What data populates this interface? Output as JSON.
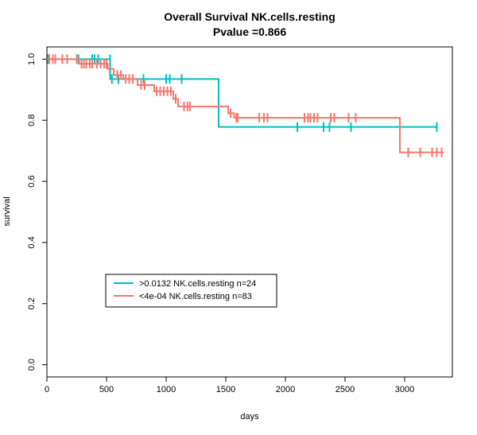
{
  "chart_data": {
    "type": "line",
    "subtype": "kaplan-meier step",
    "title": "Overall Survival NK.cells.resting",
    "subtitle": "Pvalue =0.866",
    "xlabel": "days",
    "ylabel": "survival",
    "xlim": [
      0,
      3400
    ],
    "ylim": [
      0,
      1
    ],
    "x_ticks": [
      0,
      500,
      1000,
      1500,
      2000,
      2500,
      3000
    ],
    "y_ticks": [
      0.0,
      0.2,
      0.4,
      0.6,
      0.8,
      1.0
    ],
    "x_tick_labels": [
      "0",
      "500",
      "1000",
      "1500",
      "2000",
      "2500",
      "3000"
    ],
    "y_tick_labels": [
      "0.0",
      "0.2",
      "0.4",
      "0.6",
      "0.8",
      "1.0"
    ],
    "grid": false,
    "legend_position": "bottom-left",
    "series": [
      {
        "name": ">0.0132 NK.cells.resting n=24",
        "color": "#00BFC4",
        "steps": [
          [
            0,
            1.0
          ],
          [
            530,
            0.935
          ],
          [
            1440,
            0.778
          ],
          [
            3270,
            0.778
          ]
        ],
        "censored": [
          [
            10,
            1.0
          ],
          [
            20,
            1.0
          ],
          [
            265,
            1.0
          ],
          [
            380,
            1.0
          ],
          [
            400,
            1.0
          ],
          [
            430,
            1.0
          ],
          [
            530,
            1.0
          ],
          [
            545,
            0.935
          ],
          [
            600,
            0.935
          ],
          [
            810,
            0.935
          ],
          [
            1000,
            0.935
          ],
          [
            1030,
            0.935
          ],
          [
            1130,
            0.935
          ],
          [
            2100,
            0.778
          ],
          [
            2320,
            0.778
          ],
          [
            2370,
            0.778
          ],
          [
            2550,
            0.778
          ],
          [
            3270,
            0.778
          ]
        ]
      },
      {
        "name": "<4e-04 NK.cells.resting n=83",
        "color": "#F8766D",
        "steps": [
          [
            0,
            1.0
          ],
          [
            270,
            0.985
          ],
          [
            510,
            0.968
          ],
          [
            560,
            0.948
          ],
          [
            640,
            0.935
          ],
          [
            760,
            0.915
          ],
          [
            900,
            0.895
          ],
          [
            1060,
            0.87
          ],
          [
            1100,
            0.845
          ],
          [
            1520,
            0.823
          ],
          [
            1570,
            0.808
          ],
          [
            2960,
            0.695
          ],
          [
            3330,
            0.695
          ]
        ],
        "censored": [
          [
            20,
            1.0
          ],
          [
            50,
            1.0
          ],
          [
            70,
            1.0
          ],
          [
            130,
            1.0
          ],
          [
            170,
            1.0
          ],
          [
            250,
            1.0
          ],
          [
            290,
            0.985
          ],
          [
            310,
            0.985
          ],
          [
            330,
            0.985
          ],
          [
            360,
            0.985
          ],
          [
            380,
            0.985
          ],
          [
            420,
            0.985
          ],
          [
            450,
            0.985
          ],
          [
            480,
            0.985
          ],
          [
            500,
            0.985
          ],
          [
            590,
            0.948
          ],
          [
            620,
            0.948
          ],
          [
            660,
            0.935
          ],
          [
            690,
            0.935
          ],
          [
            720,
            0.935
          ],
          [
            790,
            0.915
          ],
          [
            820,
            0.915
          ],
          [
            920,
            0.895
          ],
          [
            950,
            0.895
          ],
          [
            980,
            0.895
          ],
          [
            1010,
            0.895
          ],
          [
            1040,
            0.895
          ],
          [
            1080,
            0.87
          ],
          [
            1150,
            0.845
          ],
          [
            1180,
            0.845
          ],
          [
            1200,
            0.845
          ],
          [
            1540,
            0.823
          ],
          [
            1590,
            0.808
          ],
          [
            1600,
            0.808
          ],
          [
            1780,
            0.808
          ],
          [
            1820,
            0.808
          ],
          [
            1850,
            0.808
          ],
          [
            2160,
            0.808
          ],
          [
            2190,
            0.808
          ],
          [
            2210,
            0.808
          ],
          [
            2240,
            0.808
          ],
          [
            2270,
            0.808
          ],
          [
            2380,
            0.808
          ],
          [
            2410,
            0.808
          ],
          [
            2530,
            0.808
          ],
          [
            2590,
            0.808
          ],
          [
            3030,
            0.695
          ],
          [
            3130,
            0.695
          ],
          [
            3230,
            0.695
          ],
          [
            3270,
            0.695
          ],
          [
            3310,
            0.695
          ]
        ]
      }
    ]
  }
}
